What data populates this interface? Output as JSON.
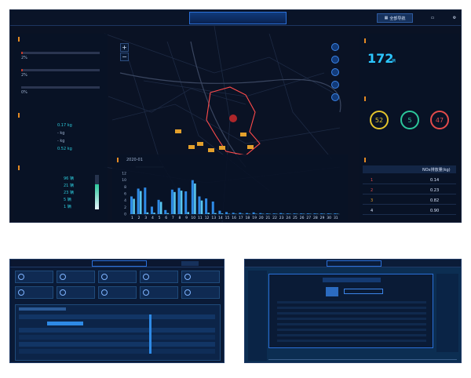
{
  "header": {
    "title": "",
    "nav_all": "全部导航",
    "nav_obd": "",
    "accent": "#2a6fd8"
  },
  "left": {
    "status_title": "",
    "status_rows": [
      {
        "label": "",
        "value": "",
        "pct": "2%",
        "fill": 0.02
      },
      {
        "label": "",
        "value": "",
        "pct": "2%",
        "fill": 0.02
      },
      {
        "label": "",
        "value": "",
        "pct": "0%",
        "fill": 0.0
      }
    ],
    "nox_title": "",
    "nox_rows": [
      {
        "label": "",
        "value": "0.17 kg"
      },
      {
        "label": "",
        "value": "- kg"
      },
      {
        "label": "",
        "value": "- kg"
      },
      {
        "label": "",
        "value": "0.52 kg"
      }
    ],
    "dist_title": "",
    "dist_rows": [
      {
        "label": "",
        "value": "96 辆"
      },
      {
        "label": "",
        "value": "21 辆"
      },
      {
        "label": "",
        "value": "23 辆"
      },
      {
        "label": "",
        "value": "5 辆"
      },
      {
        "label": "",
        "value": "1 辆"
      }
    ],
    "dist_gauge_fill": 0.72
  },
  "map": {
    "zoom_in": "+",
    "zoom_out": "−",
    "map_labels": [
      "",
      "",
      "",
      "",
      "",
      "",
      ""
    ]
  },
  "chart": {
    "title": "",
    "date": "2020-01"
  },
  "chart_data": {
    "type": "bar",
    "title": "",
    "date": "2020-01",
    "categories": [
      "1",
      "2",
      "3",
      "4",
      "5",
      "6",
      "7",
      "8",
      "9",
      "10",
      "11",
      "12",
      "13",
      "14",
      "15",
      "16",
      "17",
      "18",
      "19",
      "20",
      "21",
      "22",
      "23",
      "24",
      "25",
      "26",
      "27",
      "28",
      "29",
      "30",
      "31"
    ],
    "values": [
      5.2,
      7.5,
      7.8,
      2.2,
      4.2,
      1.2,
      7.2,
      7.7,
      6.7,
      10.0,
      5.2,
      4.6,
      3.7,
      1.0,
      0.6,
      0.4,
      0.4,
      0.3,
      0.5,
      0.3,
      0.2,
      0.2,
      0.3,
      0.2,
      0.2,
      0.2,
      0.2,
      0.2,
      0.2,
      0.2,
      0.2
    ],
    "secondary": [
      4.5,
      6.8,
      0.5,
      0.4,
      3.6,
      0.3,
      6.5,
      6.9,
      0.6,
      9.0,
      4.0,
      0.4,
      0.3,
      0.2,
      0.1,
      0.1,
      0.1,
      0.1,
      0.1,
      0.1,
      0.1,
      0.1,
      0.1,
      0.1,
      0.1,
      0.1,
      0.1,
      0.1,
      0.1,
      0.1,
      0.1
    ],
    "yticks": [
      "12",
      "10",
      "8",
      "6",
      "4",
      "2",
      "0"
    ],
    "ylim": [
      0,
      12
    ],
    "grid": false
  },
  "right": {
    "total_title": "",
    "total_value": "172",
    "total_unit": "辆",
    "info_title": "",
    "circles": [
      {
        "value": "52",
        "label": "",
        "color": "#e3c42c"
      },
      {
        "value": "5",
        "label": "",
        "color": "#2cc79b"
      },
      {
        "value": "47",
        "label": "",
        "color": "#e34b4b"
      }
    ],
    "rank_title": "",
    "rank_headers": [
      "",
      "",
      "NOx排放量(kg)"
    ],
    "rank_rows": [
      {
        "rank": "1",
        "region": "",
        "value": "0.14",
        "color": "#e34b4b"
      },
      {
        "rank": "2",
        "region": "",
        "value": "0.23",
        "color": "#e34b4b"
      },
      {
        "rank": "3",
        "region": "",
        "value": "0.82",
        "color": "#e3a02c"
      },
      {
        "rank": "4",
        "region": "",
        "value": "0.90",
        "color": "#dbe7ff"
      }
    ]
  },
  "thumb1": {
    "title": "",
    "card_values": [
      "",
      "",
      "",
      "",
      "",
      "",
      "",
      "",
      "",
      ""
    ]
  },
  "thumb2": {
    "title": "",
    "dialog_title": "",
    "plate": ""
  }
}
